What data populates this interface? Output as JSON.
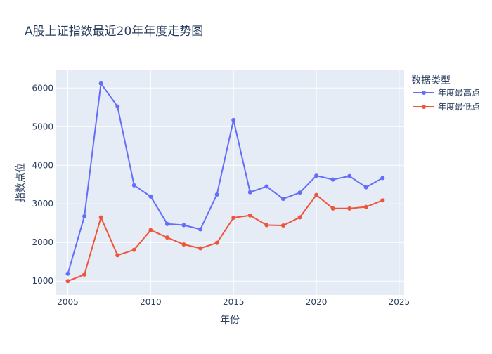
{
  "chart_data": {
    "type": "line",
    "title": "A股上证指数最近20年年度走势图",
    "xlabel": "年份",
    "ylabel": "指数点位",
    "xlim": [
      2004.3,
      2025.3
    ],
    "ylim": [
      640,
      6460
    ],
    "xticks": [
      2005,
      2010,
      2015,
      2020,
      2025
    ],
    "yticks": [
      1000,
      2000,
      3000,
      4000,
      5000,
      6000
    ],
    "grid": true,
    "legend": {
      "title": "数据类型",
      "position": "right"
    },
    "x": [
      2005,
      2006,
      2007,
      2008,
      2009,
      2010,
      2011,
      2012,
      2013,
      2014,
      2015,
      2016,
      2017,
      2018,
      2019,
      2020,
      2021,
      2022,
      2023,
      2024
    ],
    "series": [
      {
        "name": "年度最高点",
        "color": "#636efa",
        "values": [
          1190,
          2680,
          6120,
          5520,
          3480,
          3190,
          2480,
          2450,
          2340,
          3240,
          5170,
          3300,
          3450,
          3130,
          3290,
          3730,
          3630,
          3720,
          3430,
          3670
        ]
      },
      {
        "name": "年度最低点",
        "color": "#ef553b",
        "values": [
          1000,
          1170,
          2650,
          1670,
          1810,
          2320,
          2130,
          1950,
          1850,
          1990,
          2640,
          2700,
          2450,
          2440,
          2650,
          3230,
          2880,
          2880,
          2920,
          3090
        ]
      }
    ]
  },
  "colors": {
    "plot_bg": "#e5ecf6",
    "grid": "#ffffff",
    "text": "#2a3f5f"
  }
}
